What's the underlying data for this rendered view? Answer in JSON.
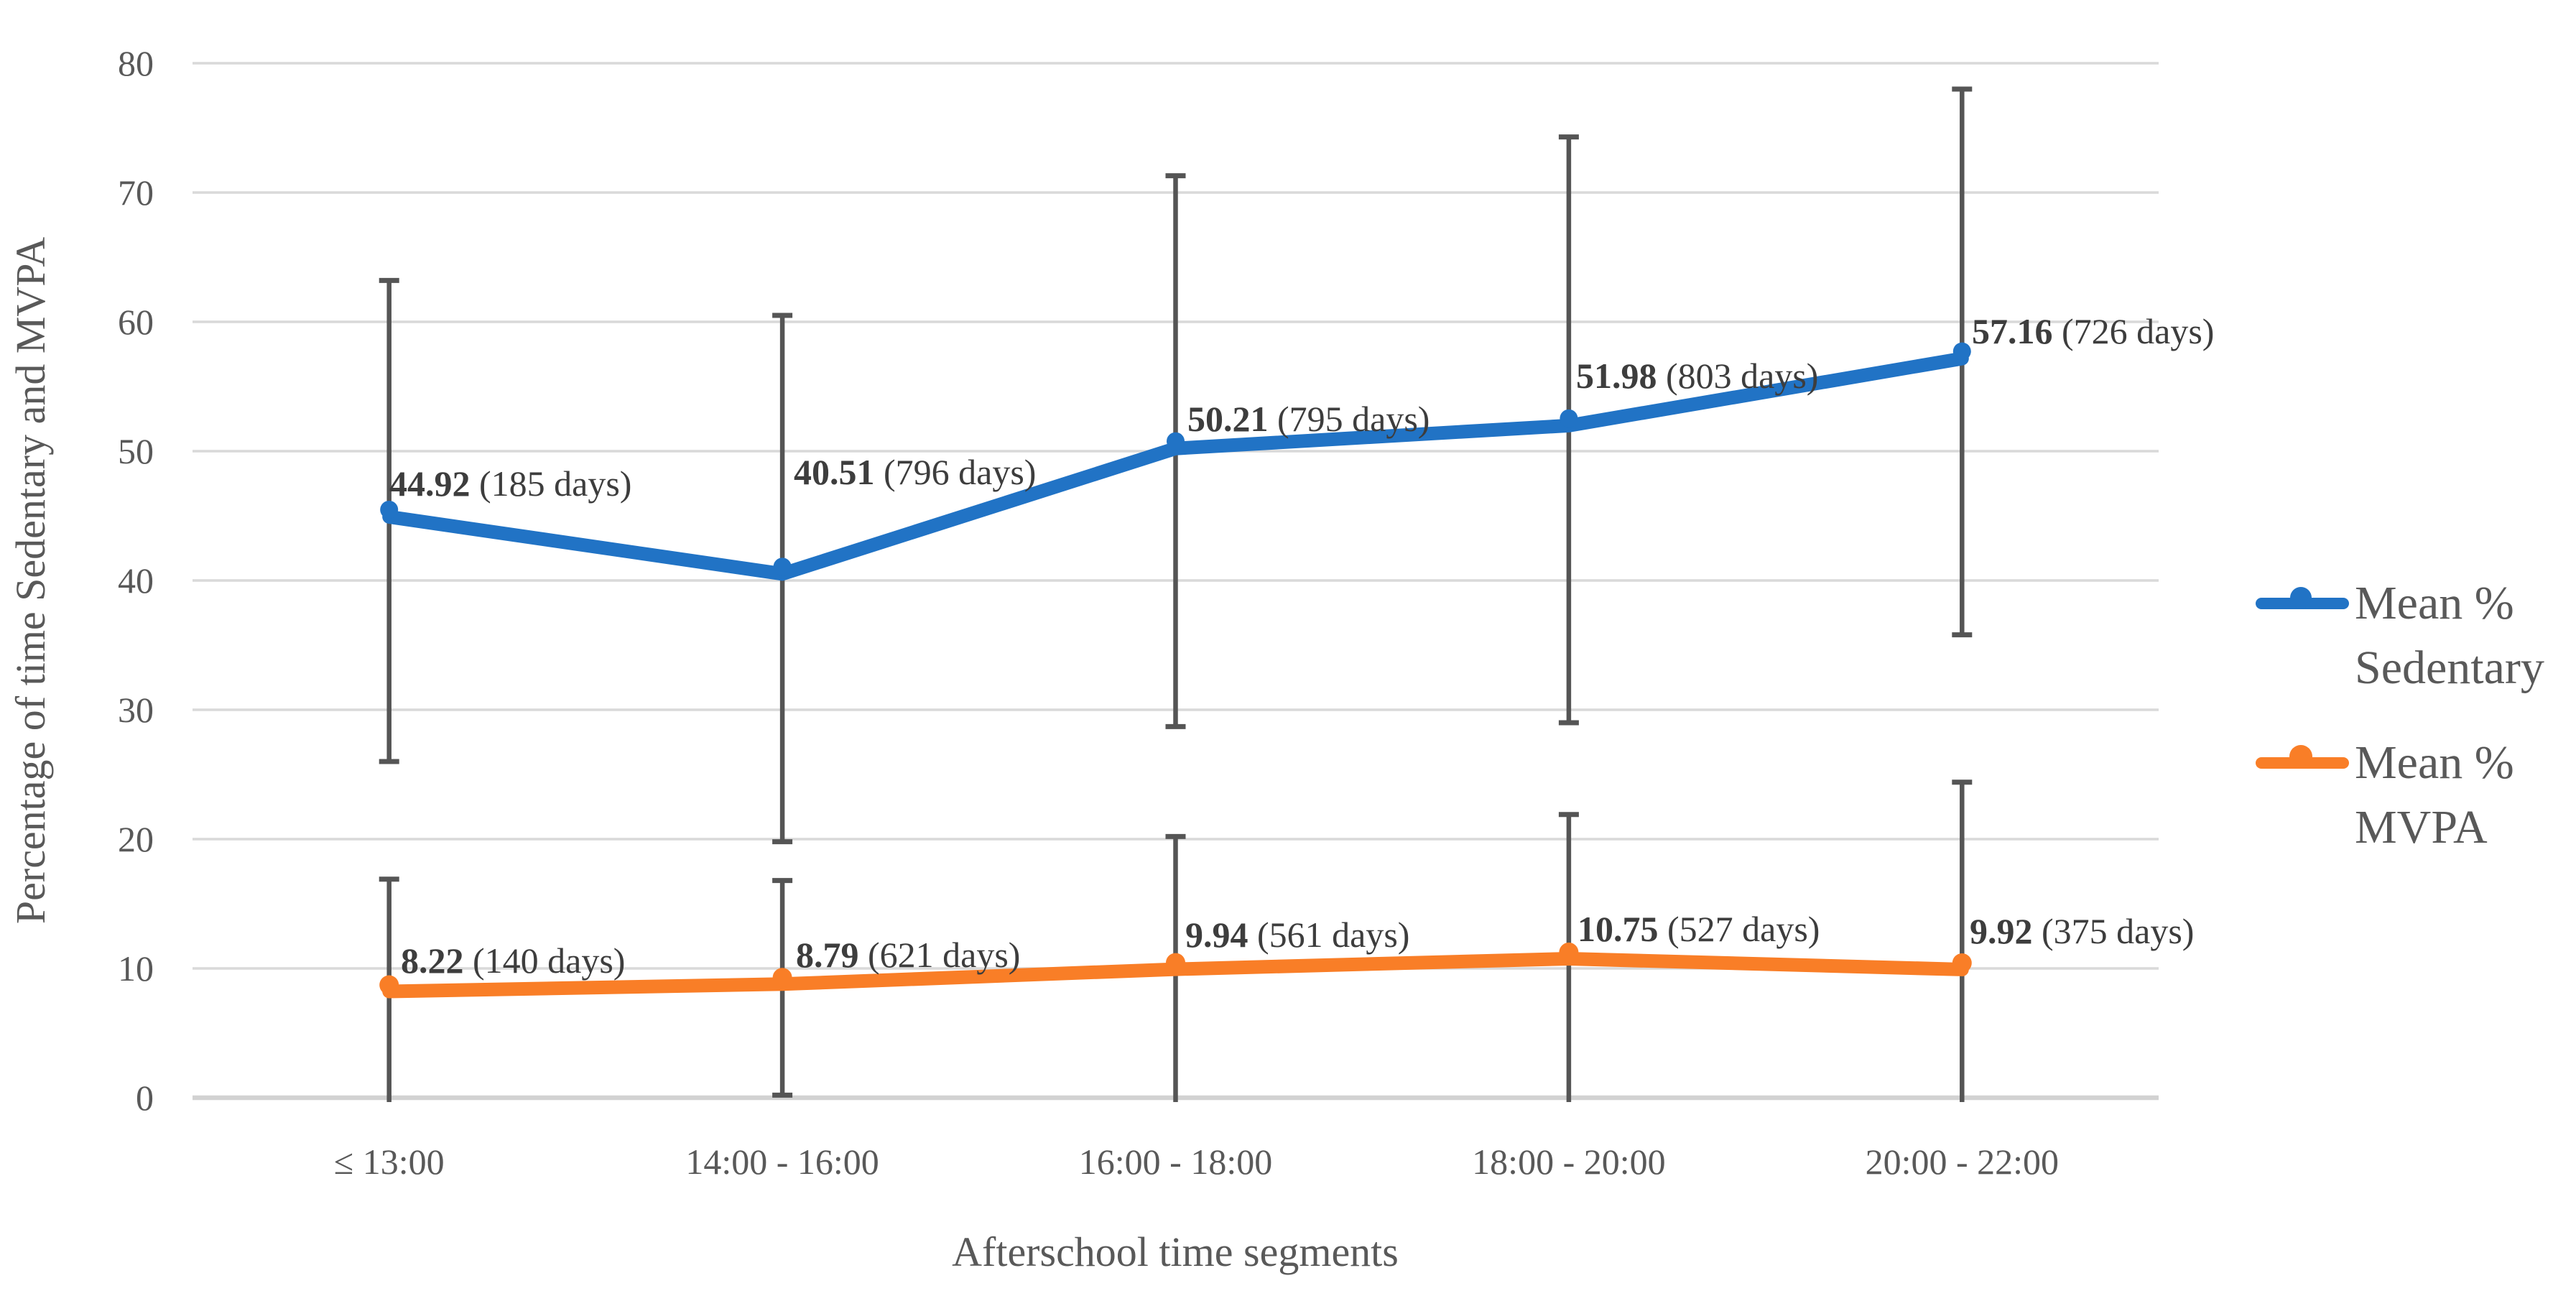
{
  "chart_data": {
    "type": "line",
    "title": "",
    "categories": [
      "≤ 13:00",
      "14:00 - 16:00",
      "16:00 - 18:00",
      "18:00 - 20:00",
      "20:00 - 22:00"
    ],
    "xlabel": "Afterschool time segments",
    "ylabel": "Percentage of time Sedentary and MVPA",
    "ylim": [
      0,
      80
    ],
    "yticks": [
      0,
      10,
      20,
      30,
      40,
      50,
      60,
      70,
      80
    ],
    "grid": "horizontal",
    "legend_position": "right-middle",
    "series": [
      {
        "name": "Mean % Sedentary",
        "color": "#2173c5",
        "values": [
          44.92,
          40.51,
          50.21,
          51.98,
          57.16
        ],
        "days": [
          185,
          796,
          795,
          803,
          726
        ],
        "data_labels": [
          {
            "value": "44.92",
            "note": " (185 days)"
          },
          {
            "value": "40.51",
            "note": " (796 days)"
          },
          {
            "value": "50.21",
            "note": " (795 days)"
          },
          {
            "value": "51.98",
            "note": " (803 days)"
          },
          {
            "value": "57.16",
            "note": " (726 days)"
          }
        ],
        "error_upper_est": [
          63.2,
          60.5,
          71.3,
          74.3,
          78.0
        ],
        "error_lower_est": [
          26.0,
          19.8,
          28.7,
          29.0,
          35.8
        ],
        "error_lower_clipped": [
          false,
          false,
          false,
          false,
          false
        ]
      },
      {
        "name": "Mean % MVPA",
        "color": "#f97e27",
        "values": [
          8.22,
          8.79,
          9.94,
          10.75,
          9.92
        ],
        "days": [
          140,
          621,
          561,
          527,
          375
        ],
        "data_labels": [
          {
            "value": "8.22",
            "note": " (140 days)"
          },
          {
            "value": "8.79",
            "note": " (621 days)"
          },
          {
            "value": "9.94",
            "note": " (561 days)"
          },
          {
            "value": "10.75",
            "note": " (527 days)"
          },
          {
            "value": "9.92",
            "note": " (375 days)"
          }
        ],
        "error_upper_est": [
          16.9,
          16.8,
          20.2,
          21.9,
          24.4
        ],
        "error_lower_est": [
          0,
          0.2,
          0,
          0,
          0
        ],
        "error_lower_clipped": [
          true,
          false,
          true,
          true,
          true
        ]
      }
    ],
    "legend": [
      {
        "line1": "Mean %",
        "line2": "Sedentary"
      },
      {
        "line1": "Mean %",
        "line2": "MVPA"
      }
    ]
  },
  "colors": {
    "gridline": "#d9d9d9",
    "axis_line": "#d2d2d2",
    "error_bar": "#555555",
    "tick_text": "#595959",
    "title_text": "#595959",
    "data_label_text": "#3d3d3d",
    "background": "#ffffff"
  }
}
